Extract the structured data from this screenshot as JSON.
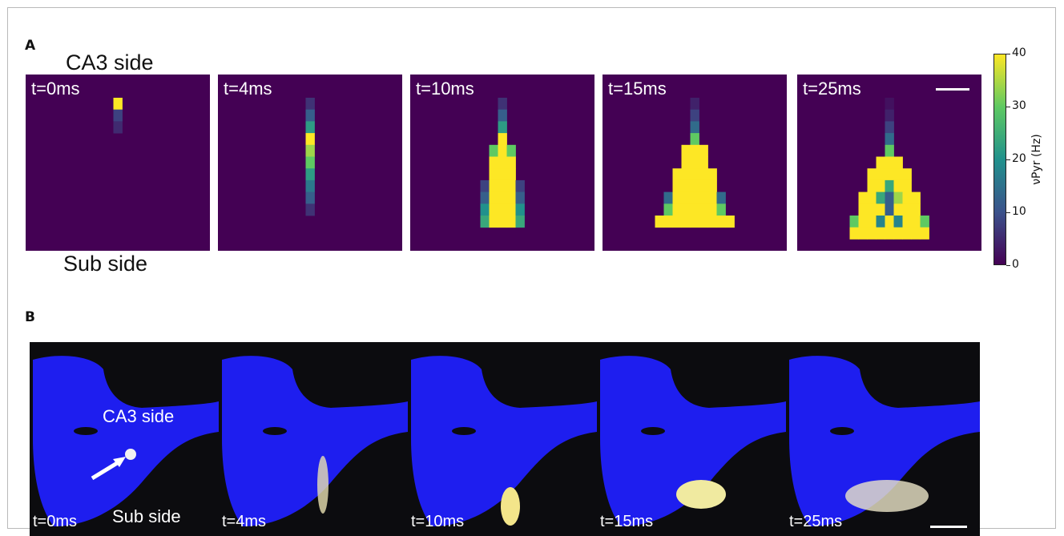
{
  "panel_a": {
    "letter": "A",
    "top_label": "CA3 side",
    "bottom_label": "Sub side",
    "colors": [
      "#440154",
      "#3b528b",
      "#21918c",
      "#5ec962",
      "#fde725"
    ],
    "colorbar": {
      "ticks": [
        "0",
        "10",
        "20",
        "30",
        "40"
      ],
      "label": "νPyr (Hz)",
      "range": [
        0,
        40
      ]
    },
    "frames": [
      {
        "time": "t=0ms",
        "cells": [
          [
            0,
            0,
            40
          ],
          [
            0,
            1,
            8
          ],
          [
            0,
            2,
            5
          ]
        ]
      },
      {
        "time": "t=4ms",
        "cells": [
          [
            0,
            0,
            6
          ],
          [
            0,
            1,
            12
          ],
          [
            0,
            2,
            22
          ],
          [
            0,
            3,
            40
          ],
          [
            0,
            4,
            34
          ],
          [
            0,
            5,
            30
          ],
          [
            0,
            6,
            22
          ],
          [
            0,
            7,
            16
          ],
          [
            0,
            8,
            12
          ],
          [
            0,
            9,
            6
          ]
        ]
      },
      {
        "time": "t=10ms",
        "cells": [
          [
            0,
            0,
            6
          ],
          [
            0,
            1,
            12
          ],
          [
            0,
            2,
            22
          ],
          [
            0,
            3,
            40
          ],
          [
            -1,
            4,
            30
          ],
          [
            0,
            4,
            40
          ],
          [
            1,
            4,
            30
          ],
          [
            -1,
            5,
            40
          ],
          [
            0,
            5,
            40
          ],
          [
            1,
            5,
            40
          ],
          [
            -1,
            6,
            40
          ],
          [
            0,
            6,
            40
          ],
          [
            1,
            6,
            40
          ],
          [
            -2,
            7,
            8
          ],
          [
            -1,
            7,
            40
          ],
          [
            0,
            7,
            40
          ],
          [
            1,
            7,
            40
          ],
          [
            2,
            7,
            8
          ],
          [
            -2,
            8,
            12
          ],
          [
            -1,
            8,
            40
          ],
          [
            0,
            8,
            40
          ],
          [
            1,
            8,
            40
          ],
          [
            2,
            8,
            12
          ],
          [
            -2,
            9,
            20
          ],
          [
            -1,
            9,
            40
          ],
          [
            0,
            9,
            40
          ],
          [
            1,
            9,
            40
          ],
          [
            2,
            9,
            20
          ],
          [
            -2,
            10,
            24
          ],
          [
            -1,
            10,
            40
          ],
          [
            0,
            10,
            40
          ],
          [
            1,
            10,
            40
          ],
          [
            2,
            10,
            24
          ]
        ]
      },
      {
        "time": "t=15ms",
        "cells": [
          [
            0,
            0,
            4
          ],
          [
            0,
            1,
            8
          ],
          [
            0,
            2,
            14
          ],
          [
            0,
            3,
            30
          ],
          [
            -1,
            4,
            40
          ],
          [
            0,
            4,
            40
          ],
          [
            1,
            4,
            40
          ],
          [
            -1,
            5,
            40
          ],
          [
            0,
            5,
            40
          ],
          [
            1,
            5,
            40
          ],
          [
            -2,
            6,
            40
          ],
          [
            -1,
            6,
            40
          ],
          [
            0,
            6,
            40
          ],
          [
            1,
            6,
            40
          ],
          [
            2,
            6,
            40
          ],
          [
            -2,
            7,
            40
          ],
          [
            -1,
            7,
            40
          ],
          [
            0,
            7,
            40
          ],
          [
            1,
            7,
            40
          ],
          [
            2,
            7,
            40
          ],
          [
            -3,
            8,
            14
          ],
          [
            -2,
            8,
            40
          ],
          [
            -1,
            8,
            40
          ],
          [
            0,
            8,
            40
          ],
          [
            1,
            8,
            40
          ],
          [
            2,
            8,
            40
          ],
          [
            3,
            8,
            14
          ],
          [
            -3,
            9,
            30
          ],
          [
            -2,
            9,
            40
          ],
          [
            -1,
            9,
            40
          ],
          [
            0,
            9,
            40
          ],
          [
            1,
            9,
            40
          ],
          [
            2,
            9,
            40
          ],
          [
            3,
            9,
            30
          ],
          [
            -4,
            10,
            40
          ],
          [
            -3,
            10,
            40
          ],
          [
            -2,
            10,
            40
          ],
          [
            -1,
            10,
            40
          ],
          [
            0,
            10,
            40
          ],
          [
            1,
            10,
            40
          ],
          [
            2,
            10,
            40
          ],
          [
            3,
            10,
            40
          ],
          [
            4,
            10,
            40
          ]
        ]
      },
      {
        "time": "t=25ms",
        "cells": [
          [
            0,
            0,
            2
          ],
          [
            0,
            1,
            4
          ],
          [
            0,
            2,
            8
          ],
          [
            0,
            3,
            14
          ],
          [
            0,
            4,
            30
          ],
          [
            -1,
            5,
            40
          ],
          [
            0,
            5,
            40
          ],
          [
            1,
            5,
            40
          ],
          [
            -2,
            6,
            40
          ],
          [
            -1,
            6,
            40
          ],
          [
            0,
            6,
            40
          ],
          [
            1,
            6,
            40
          ],
          [
            2,
            6,
            40
          ],
          [
            -2,
            7,
            40
          ],
          [
            -1,
            7,
            40
          ],
          [
            0,
            7,
            24
          ],
          [
            1,
            7,
            40
          ],
          [
            2,
            7,
            40
          ],
          [
            -3,
            8,
            40
          ],
          [
            -2,
            8,
            40
          ],
          [
            -1,
            8,
            24
          ],
          [
            0,
            8,
            12
          ],
          [
            1,
            8,
            34
          ],
          [
            2,
            8,
            40
          ],
          [
            3,
            8,
            40
          ],
          [
            -3,
            9,
            40
          ],
          [
            -2,
            9,
            40
          ],
          [
            -1,
            9,
            40
          ],
          [
            0,
            9,
            12
          ],
          [
            1,
            9,
            40
          ],
          [
            2,
            9,
            40
          ],
          [
            3,
            9,
            40
          ],
          [
            -4,
            10,
            30
          ],
          [
            -3,
            10,
            40
          ],
          [
            -2,
            10,
            40
          ],
          [
            -1,
            10,
            18
          ],
          [
            0,
            10,
            40
          ],
          [
            1,
            10,
            18
          ],
          [
            2,
            10,
            40
          ],
          [
            3,
            10,
            40
          ],
          [
            4,
            10,
            30
          ],
          [
            -4,
            11,
            40
          ],
          [
            -3,
            11,
            40
          ],
          [
            -2,
            11,
            40
          ],
          [
            -1,
            11,
            40
          ],
          [
            0,
            11,
            40
          ],
          [
            1,
            11,
            40
          ],
          [
            2,
            11,
            40
          ],
          [
            3,
            11,
            40
          ],
          [
            4,
            11,
            40
          ]
        ]
      }
    ]
  },
  "panel_b": {
    "letter": "B",
    "top_label": "CA3 side",
    "bottom_label": "Sub side",
    "times": [
      "t=0ms",
      "t=4ms",
      "t=10ms",
      "t=15ms",
      "t=25ms"
    ]
  }
}
